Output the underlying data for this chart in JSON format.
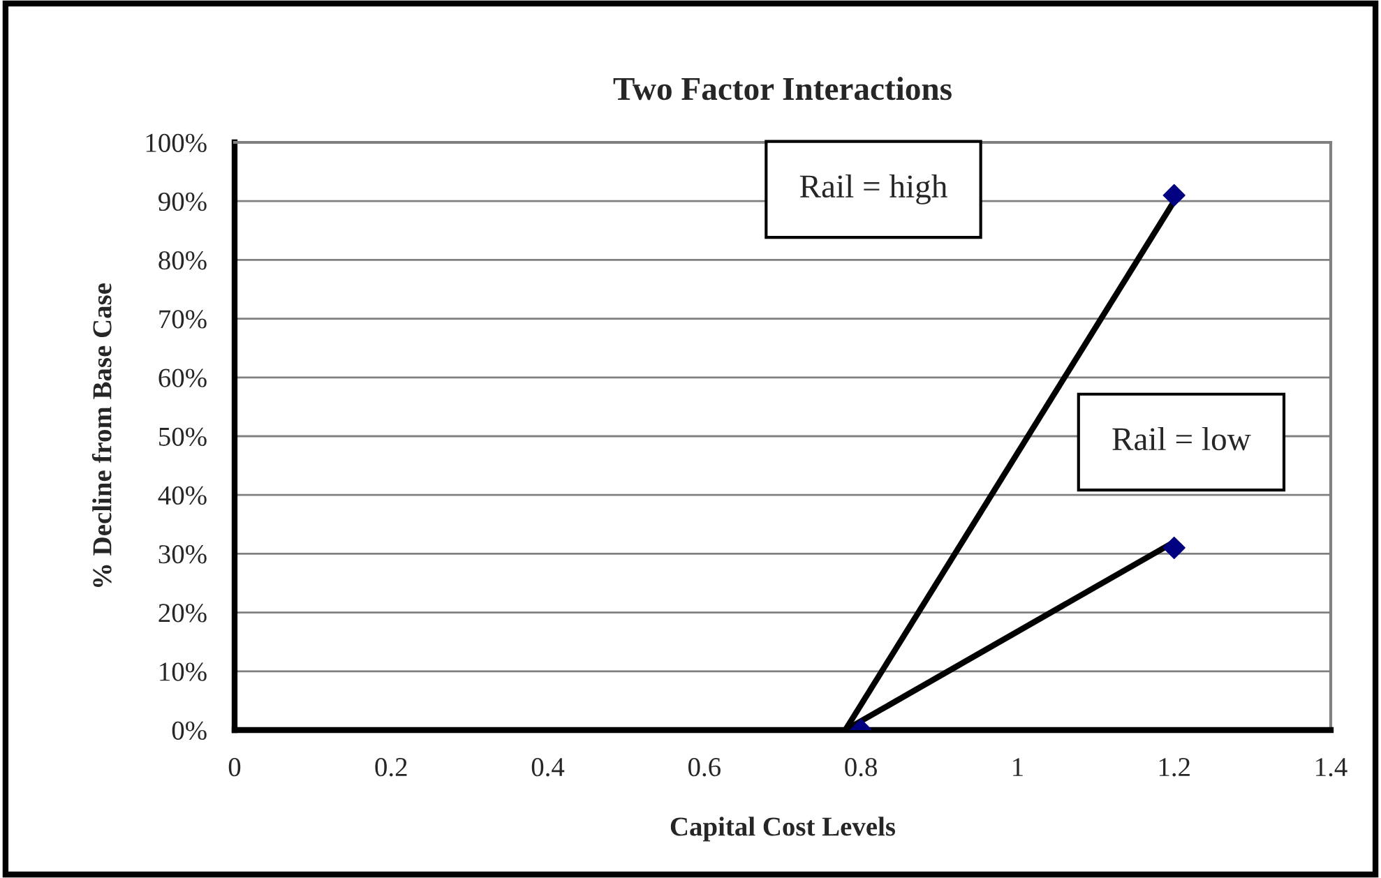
{
  "chart_data": {
    "type": "scatter",
    "title": "Two Factor Interactions",
    "xlabel": "Capital Cost Levels",
    "ylabel": "% Decline from Base Case",
    "series": [
      {
        "color": "#000080",
        "x": [
          0.8,
          1.2,
          1.2
        ],
        "values": [
          0,
          91,
          31
        ],
        "marker": "diamond"
      },
      {
        "type": "line",
        "color": "#000000",
        "x": [
          0.78,
          1.2
        ],
        "values": [
          0,
          90
        ],
        "marker": "none"
      },
      {
        "type": "line",
        "color": "#000000",
        "x": [
          0.78,
          1.2
        ],
        "values": [
          0,
          32
        ],
        "marker": "none"
      }
    ],
    "annotations": [
      "Rail = high",
      "Rail = low"
    ],
    "xlim": [
      0,
      1.4
    ],
    "xticks": [
      0,
      0.2,
      0.4,
      0.6,
      0.8,
      1,
      1.2,
      1.4
    ],
    "ylim": [
      0,
      100
    ],
    "yticks": [
      {
        "value": 0,
        "label": "0%"
      },
      {
        "value": 10,
        "label": "10%"
      },
      {
        "value": 20,
        "label": "20%"
      },
      {
        "value": 30,
        "label": "30%"
      },
      {
        "value": 40,
        "label": "40%"
      },
      {
        "value": 50,
        "label": "50%"
      },
      {
        "value": 60,
        "label": "60%"
      },
      {
        "value": 70,
        "label": "70%"
      },
      {
        "value": 80,
        "label": "80%"
      },
      {
        "value": 90,
        "label": "90%"
      },
      {
        "value": 100,
        "label": "100%"
      }
    ],
    "grid": "y",
    "legend": false
  }
}
